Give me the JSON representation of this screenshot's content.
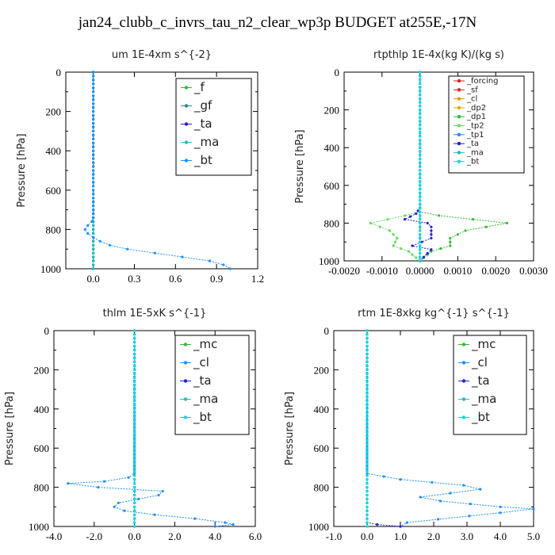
{
  "page_title": "jan24_clubb_c_invrs_tau_n2_clear_wp3p  BUDGET at255E,-17N",
  "chart_data": [
    {
      "type": "line",
      "title": "um  1E-4xm s^{-2}",
      "ylabel": "Pressure [hPa]",
      "xlim": [
        -0.2,
        1.2
      ],
      "ylim": [
        1000,
        0
      ],
      "xticks": [
        "0.0",
        "0.3",
        "0.6",
        "0.9",
        "1.2"
      ],
      "xtick_values": [
        0.0,
        0.3,
        0.6,
        0.9,
        1.2
      ],
      "yticks": [
        "0",
        "200",
        "400",
        "600",
        "800",
        "1000"
      ],
      "ytick_values": [
        0,
        200,
        400,
        600,
        800,
        1000
      ],
      "series": [
        {
          "name": "_f",
          "color": "#33bb33",
          "x": [
            0,
            0
          ],
          "y": [
            0,
            1000
          ]
        },
        {
          "name": "_gf",
          "color": "#2a8a8a",
          "x": [
            0,
            0
          ],
          "y": [
            0,
            1000
          ]
        },
        {
          "name": "_ta",
          "color": "#2222cc",
          "x": [
            0,
            0
          ],
          "y": [
            0,
            1000
          ]
        },
        {
          "name": "_ma",
          "color": "#22bbbb",
          "x": [
            0,
            0
          ],
          "y": [
            0,
            1000
          ]
        },
        {
          "name": "_bt",
          "color": "#1e90ff",
          "x": [
            0,
            0,
            -0.01,
            -0.04,
            -0.06,
            -0.04,
            0.0,
            0.05,
            0.12,
            0.25,
            0.45,
            0.65,
            0.85,
            0.95,
            1.0
          ],
          "y": [
            0,
            740,
            760,
            780,
            800,
            820,
            840,
            860,
            880,
            900,
            920,
            940,
            960,
            980,
            1000
          ]
        }
      ]
    },
    {
      "type": "line",
      "title": "rtpthlp  1E-4x(kg K)/(kg s)",
      "ylabel": "Pressure [hPa]",
      "xlim": [
        -0.002,
        0.003
      ],
      "ylim": [
        1000,
        0
      ],
      "xticks": [
        "-0.0020",
        "-0.0010",
        "0.0000",
        "0.0010",
        "0.0020",
        "0.0030"
      ],
      "xtick_values": [
        -0.002,
        -0.001,
        0.0,
        0.001,
        0.002,
        0.003
      ],
      "yticks": [
        "0",
        "200",
        "400",
        "600",
        "800",
        "1000"
      ],
      "ytick_values": [
        0,
        200,
        400,
        600,
        800,
        1000
      ],
      "series": [
        {
          "name": "_forcing",
          "color": "#dd2222",
          "x": [
            0,
            0
          ],
          "y": [
            0,
            1000
          ]
        },
        {
          "name": "_sf",
          "color": "#dd2222",
          "x": [
            0,
            0
          ],
          "y": [
            0,
            1000
          ]
        },
        {
          "name": "_cl",
          "color": "#ee9900",
          "x": [
            0,
            0
          ],
          "y": [
            0,
            1000
          ]
        },
        {
          "name": "_dp2",
          "color": "#ddaa00",
          "x": [
            0,
            0
          ],
          "y": [
            0,
            1000
          ]
        },
        {
          "name": "_dp1",
          "color": "#33bb33",
          "x": [
            0,
            0,
            0.0005,
            0.0023,
            0.0012,
            0.0008,
            0.0008,
            0.0003,
            0
          ],
          "y": [
            0,
            740,
            760,
            800,
            840,
            880,
            920,
            950,
            1000
          ]
        },
        {
          "name": "_tp2",
          "color": "#66dd66",
          "x": [
            0,
            0,
            -0.0004,
            -0.0013,
            -0.0008,
            -0.0006,
            -0.0007,
            -0.0003,
            0
          ],
          "y": [
            0,
            740,
            760,
            800,
            840,
            880,
            920,
            950,
            1000
          ]
        },
        {
          "name": "_tp1",
          "color": "#1e90ff",
          "x": [
            0,
            0
          ],
          "y": [
            0,
            1000
          ]
        },
        {
          "name": "_ta",
          "color": "#2222cc",
          "x": [
            0,
            0,
            -0.0001,
            -0.0004,
            0.0002,
            0.0003,
            0.0003,
            -0.0002,
            0.0003,
            0
          ],
          "y": [
            0,
            720,
            750,
            780,
            800,
            820,
            880,
            920,
            940,
            1000
          ]
        },
        {
          "name": "_ma",
          "color": "#22bbbb",
          "x": [
            0,
            0
          ],
          "y": [
            0,
            1000
          ]
        },
        {
          "name": "_bt",
          "color": "#00dddd",
          "x": [
            0,
            0
          ],
          "y": [
            0,
            1000
          ]
        }
      ]
    },
    {
      "type": "line",
      "title": "thlm  1E-5xK s^{-1}",
      "ylabel": "Pressure [hPa]",
      "xlim": [
        -4.0,
        6.0
      ],
      "ylim": [
        1000,
        0
      ],
      "xticks": [
        "-4.0",
        "-2.0",
        "0.0",
        "2.0",
        "4.0",
        "6.0"
      ],
      "xtick_values": [
        -4.0,
        -2.0,
        0.0,
        2.0,
        4.0,
        6.0
      ],
      "yticks": [
        "0",
        "200",
        "400",
        "600",
        "800",
        "1000"
      ],
      "ytick_values": [
        0,
        200,
        400,
        600,
        800,
        1000
      ],
      "series": [
        {
          "name": "_mc",
          "color": "#33bb33",
          "x": [
            0,
            0
          ],
          "y": [
            0,
            1000
          ]
        },
        {
          "name": "_cl",
          "color": "#1e90ff",
          "x": [
            0,
            0,
            -0.3,
            -1.5,
            -3.3,
            -1.8,
            1.4,
            1.2,
            -0.8,
            -1.0,
            -0.5,
            1.0,
            3.0,
            4.5,
            4.9,
            4.0
          ],
          "y": [
            0,
            730,
            750,
            770,
            780,
            800,
            820,
            840,
            880,
            900,
            920,
            940,
            960,
            980,
            990,
            1000
          ]
        },
        {
          "name": "_ta",
          "color": "#2222cc",
          "x": [
            0,
            0
          ],
          "y": [
            0,
            1000
          ]
        },
        {
          "name": "_ma",
          "color": "#22bbbb",
          "x": [
            0,
            0
          ],
          "y": [
            0,
            1000
          ]
        },
        {
          "name": "_bt",
          "color": "#00dddd",
          "x": [
            0,
            0
          ],
          "y": [
            0,
            1000
          ]
        }
      ]
    },
    {
      "type": "line",
      "title": "rtm  1E-8xkg kg^{-1} s^{-1}",
      "ylabel": "Pressure [hPa]",
      "xlim": [
        -1.0,
        5.0
      ],
      "ylim": [
        1000,
        0
      ],
      "xticks": [
        "-1.0",
        "0.0",
        "1.0",
        "2.0",
        "3.0",
        "4.0",
        "5.0"
      ],
      "xtick_values": [
        -1.0,
        0.0,
        1.0,
        2.0,
        3.0,
        4.0,
        5.0
      ],
      "yticks": [
        "0",
        "200",
        "400",
        "600",
        "800",
        "1000"
      ],
      "ytick_values": [
        0,
        200,
        400,
        600,
        800,
        1000
      ],
      "series": [
        {
          "name": "_mc",
          "color": "#33bb33",
          "x": [
            0,
            0
          ],
          "y": [
            0,
            1000
          ]
        },
        {
          "name": "_cl",
          "color": "#1e90ff",
          "x": [
            0,
            0,
            1.0,
            2.9,
            3.4,
            1.6,
            2.2,
            4.0,
            5.0,
            4.0,
            1.2,
            1.0
          ],
          "y": [
            0,
            730,
            760,
            790,
            810,
            850,
            870,
            900,
            910,
            930,
            980,
            1000
          ]
        },
        {
          "name": "_ta",
          "color": "#2222cc",
          "x": [
            0,
            0,
            0.3,
            1.0
          ],
          "y": [
            0,
            980,
            990,
            1000
          ]
        },
        {
          "name": "_ma",
          "color": "#22bbbb",
          "x": [
            0,
            0
          ],
          "y": [
            0,
            1000
          ]
        },
        {
          "name": "_bt",
          "color": "#00dddd",
          "x": [
            0,
            0
          ],
          "y": [
            0,
            1000
          ]
        }
      ]
    }
  ]
}
